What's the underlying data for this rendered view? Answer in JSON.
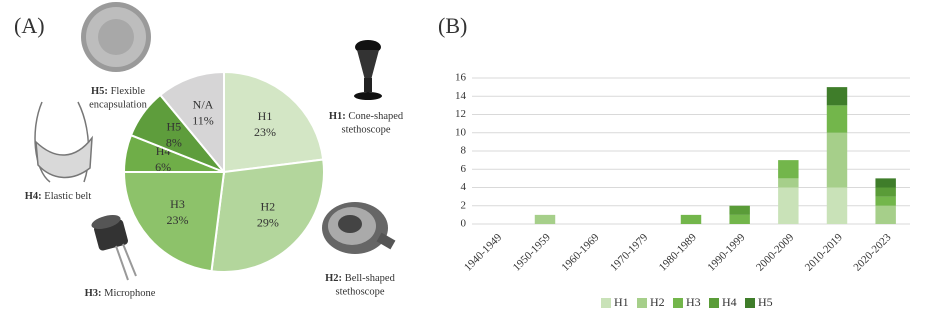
{
  "chart_data": [
    {
      "type": "pie",
      "label": "(A)",
      "categories": [
        "H1",
        "H2",
        "H3",
        "H4",
        "H5",
        "N/A"
      ],
      "values": [
        23,
        29,
        23,
        6,
        8,
        11
      ],
      "value_labels": [
        "23%",
        "29%",
        "23%",
        "6%",
        "8%",
        "11%"
      ],
      "colors": [
        "#d3e6c5",
        "#b3d69c",
        "#8dc26a",
        "#6fae48",
        "#5e9d3c",
        "#d6d5d6"
      ],
      "annotations": [
        {
          "key": "H1:",
          "lines": [
            "Cone-shaped",
            "stethoscope"
          ]
        },
        {
          "key": "H2:",
          "lines": [
            "Bell-shaped",
            "stethoscope"
          ]
        },
        {
          "key": "H3:",
          "lines": [
            "Microphone"
          ]
        },
        {
          "key": "H4:",
          "lines": [
            "Elastic belt"
          ]
        },
        {
          "key": "H5:",
          "lines": [
            "Flexible",
            "encapsulation"
          ]
        }
      ]
    },
    {
      "type": "stacked-bar",
      "label": "(B)",
      "categories": [
        "1940-1949",
        "1950-1959",
        "1960-1969",
        "1970-1979",
        "1980-1989",
        "1990-1999",
        "2000-2009",
        "2010-2019",
        "2020-2023"
      ],
      "series": [
        {
          "name": "H1",
          "color": "#c9e2b8",
          "values": [
            0,
            0,
            0,
            0,
            0,
            0,
            4,
            4,
            0
          ]
        },
        {
          "name": "H2",
          "color": "#a6cf8a",
          "values": [
            0,
            1,
            0,
            0,
            0,
            0,
            1,
            6,
            2
          ]
        },
        {
          "name": "H3",
          "color": "#73b64b",
          "values": [
            0,
            0,
            0,
            0,
            1,
            1,
            2,
            3,
            1
          ]
        },
        {
          "name": "H4",
          "color": "#5a9c38",
          "values": [
            0,
            0,
            0,
            0,
            0,
            1,
            0,
            0,
            1
          ]
        },
        {
          "name": "H5",
          "color": "#3f7d2a",
          "values": [
            0,
            0,
            0,
            0,
            0,
            0,
            0,
            2,
            1
          ]
        }
      ],
      "ylim": [
        0,
        16
      ],
      "yticks": [
        0,
        2,
        4,
        6,
        8,
        10,
        12,
        14,
        16
      ],
      "grid": true,
      "legend": "bottom"
    }
  ]
}
